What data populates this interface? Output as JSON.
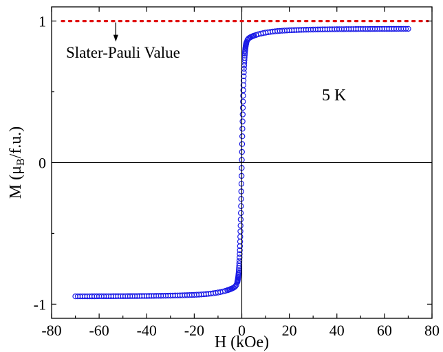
{
  "chart_data": {
    "type": "scatter",
    "xlabel": "H (kOe)",
    "ylabel_main": "M (",
    "ylabel_mu": "μ",
    "ylabel_sub": "B",
    "ylabel_tail": "/f.u.)",
    "xlim": [
      -80,
      80
    ],
    "ylim": [
      -1.1,
      1.1
    ],
    "x_ticks": [
      -80,
      -60,
      -40,
      -20,
      0,
      20,
      40,
      60,
      80
    ],
    "y_ticks": [
      -1,
      0,
      1
    ],
    "x_tick_labels": [
      "-80",
      "-60",
      "-40",
      "-20",
      "0",
      "20",
      "40",
      "60",
      "80"
    ],
    "y_tick_labels": [
      "-1",
      "0",
      "1"
    ],
    "grid": false,
    "reference_line": {
      "y": 1,
      "label": "Slater-Pauli Value",
      "color": "#e01010",
      "arrow_x": -53
    },
    "temperature_label": "5 K",
    "marker_color": "#1a1ae6",
    "series": [
      {
        "x_range": [
          -70,
          70
        ],
        "saturation": 0.945,
        "description_note": ""
      }
    ]
  }
}
